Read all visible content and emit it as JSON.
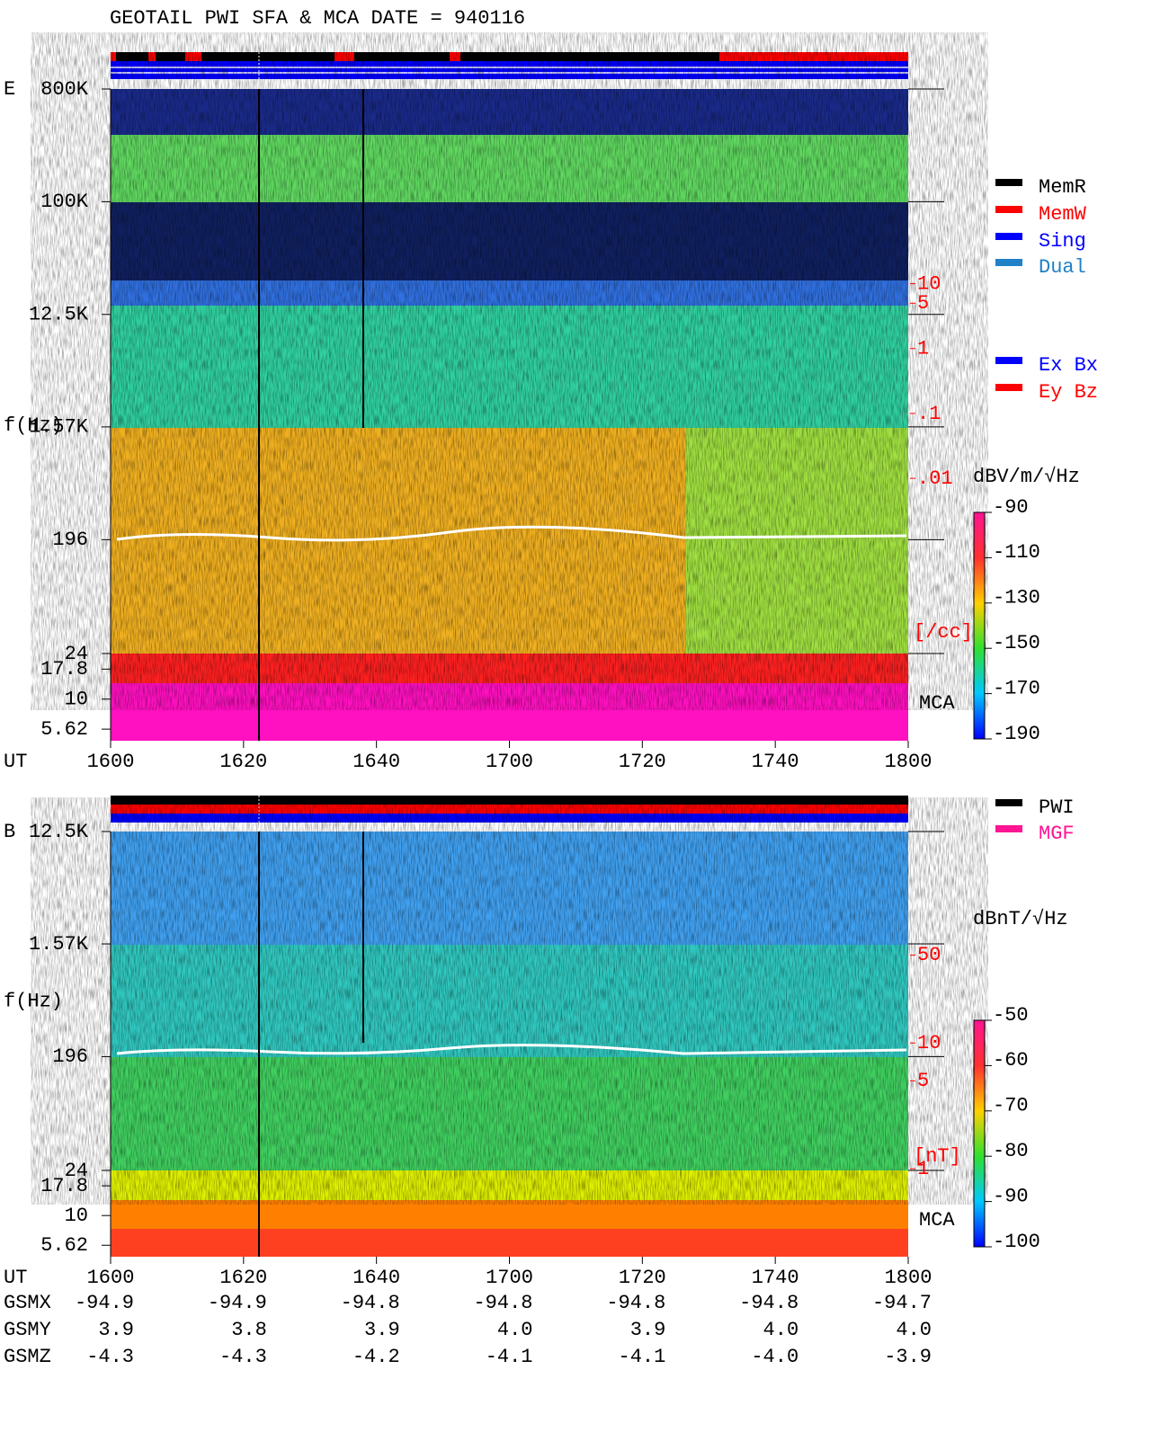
{
  "header": {
    "title": "GEOTAIL  PWI SFA & MCA   DATE = 940116"
  },
  "chart_data": [
    {
      "type": "spectrogram",
      "panel_label": "E",
      "y_label": "f(Hz)",
      "x_label": "UT",
      "mca_label": "MCA",
      "xticks": [
        "1600",
        "1620",
        "1640",
        "1700",
        "1720",
        "1740",
        "1800"
      ],
      "log_y": true,
      "ylim": [
        24,
        800000
      ],
      "yticks": [
        {
          "value": 800000,
          "label": "800K"
        },
        {
          "value": 100000,
          "label": "100K"
        },
        {
          "value": 12500,
          "label": "12.5K"
        },
        {
          "value": 1570,
          "label": "1.57K"
        },
        196,
        24
      ],
      "mca_ylim": [
        4.5,
        24
      ],
      "mca_yticks": [
        17.8,
        10,
        5.62
      ],
      "y2lim": [
        2e-05,
        10000
      ],
      "y2ticks": [
        10,
        5,
        1,
        {
          "value": 0.1,
          "label": ".1"
        },
        {
          "value": 0.01,
          "label": ".01"
        }
      ],
      "y2_label": "[/cc]",
      "colorbar_label": "dBV/m/√Hz",
      "clim": [
        -190,
        -90
      ],
      "cticks": [
        -90,
        -110,
        -130,
        -150,
        -170,
        -190
      ],
      "legend": [
        {
          "name": "MemR",
          "color": "#000000"
        },
        {
          "name": "MemW",
          "color": "#ff0000"
        },
        {
          "name": "Sing",
          "color": "#0000ff"
        },
        {
          "name": "Dual",
          "color": "#2080c8"
        },
        {
          "name": "Ex Bx",
          "color": "#0000ff"
        },
        {
          "name": "Ey Bz",
          "color": "#ff0000"
        }
      ]
    },
    {
      "type": "spectrogram",
      "panel_label": "B",
      "y_label": "f(Hz)",
      "x_label": "UT",
      "mca_label": "MCA",
      "xticks": [
        "1600",
        "1620",
        "1640",
        "1700",
        "1720",
        "1740",
        "1800"
      ],
      "log_y": true,
      "ylim": [
        24,
        12500
      ],
      "yticks": [
        {
          "value": 12500,
          "label": "12.5K"
        },
        {
          "value": 1570,
          "label": "1.57K"
        },
        196,
        24
      ],
      "mca_ylim": [
        4.5,
        24
      ],
      "mca_yticks": [
        17.8,
        10,
        5.62
      ],
      "y2lim": [
        0.97,
        480
      ],
      "y2ticks": [
        50,
        10,
        5,
        1
      ],
      "y2_label": "[nT]",
      "colorbar_label": "dBnT/√Hz",
      "clim": [
        -100,
        -50
      ],
      "cticks": [
        -50,
        -60,
        -70,
        -80,
        -90,
        -100
      ],
      "legend": [
        {
          "name": "PWI",
          "color": "#000000"
        },
        {
          "name": "MGF",
          "color": "#ff1493"
        }
      ],
      "orbit": [
        {
          "label": "GSMX",
          "values": [
            "-94.9",
            "-94.9",
            "-94.8",
            "-94.8",
            "-94.8",
            "-94.8",
            "-94.7"
          ]
        },
        {
          "label": "GSMY",
          "values": [
            "3.9",
            "3.8",
            "3.9",
            "4.0",
            "3.9",
            "4.0",
            "4.0"
          ]
        },
        {
          "label": "GSMZ",
          "values": [
            "-4.3",
            "-4.3",
            "-4.2",
            "-4.1",
            "-4.1",
            "-4.0",
            "-3.9"
          ]
        }
      ]
    }
  ]
}
